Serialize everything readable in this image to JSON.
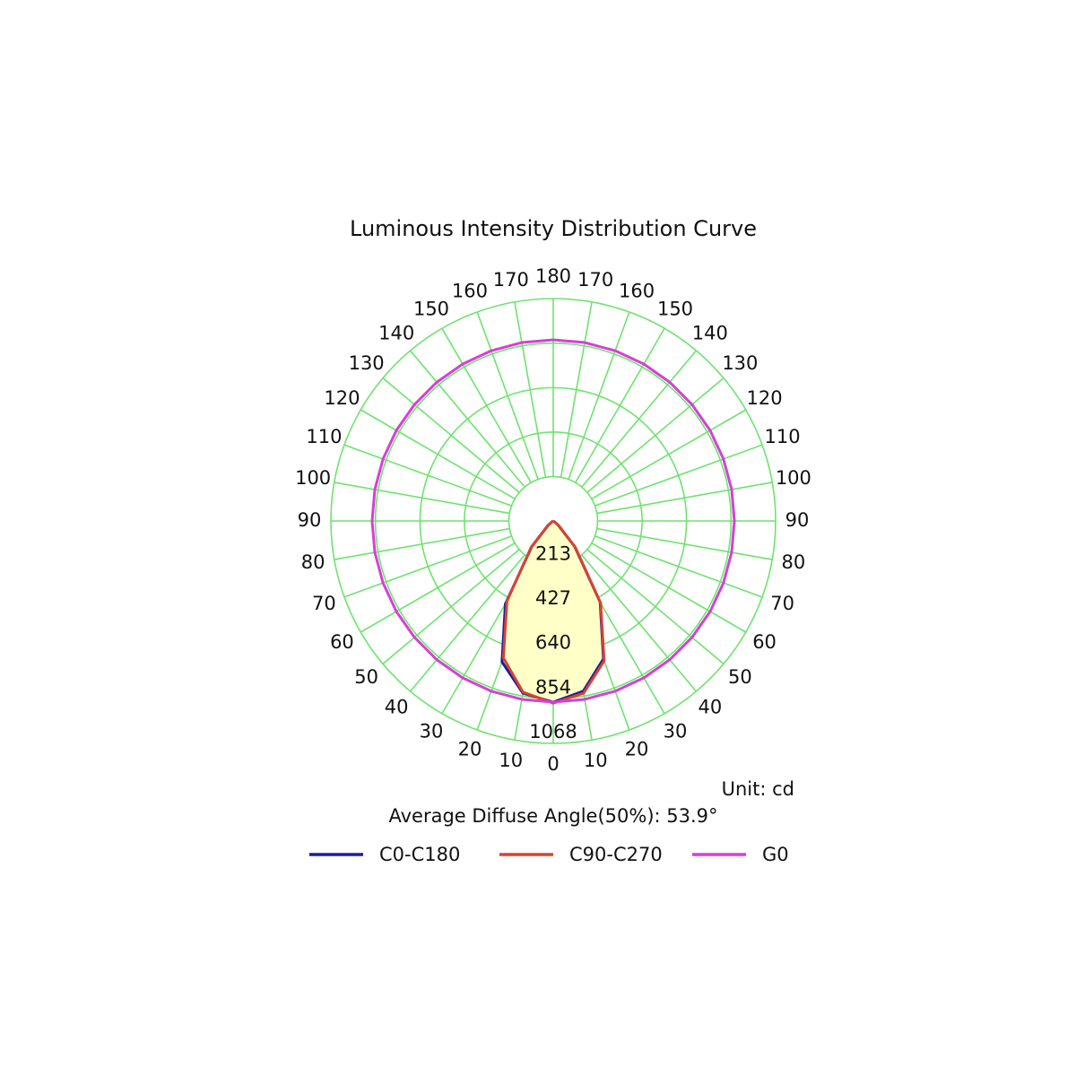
{
  "chart_data": {
    "type": "polar",
    "title": "Luminous Intensity Distribution Curve",
    "unit_label": "Unit: cd",
    "annotation": "Average Diffuse Angle(50%): 53.9°",
    "x": [
      -180,
      -170,
      -160,
      -150,
      -140,
      -130,
      -120,
      -110,
      -100,
      -90,
      -80,
      -70,
      -60,
      -50,
      -40,
      -30,
      -20,
      -10,
      0,
      10,
      20,
      30,
      40,
      50,
      60,
      70,
      80,
      90,
      100,
      110,
      120,
      130,
      140,
      150,
      160,
      170,
      180
    ],
    "rlim": [
      0,
      1068
    ],
    "rticks": [
      213,
      427,
      640,
      854,
      1068
    ],
    "thetaticks": [
      {
        "value": -170,
        "label": "170"
      },
      {
        "value": -160,
        "label": "160"
      },
      {
        "value": -150,
        "label": "150"
      },
      {
        "value": -140,
        "label": "140"
      },
      {
        "value": -130,
        "label": "130"
      },
      {
        "value": -120,
        "label": "120"
      },
      {
        "value": -110,
        "label": "110"
      },
      {
        "value": -100,
        "label": "100"
      },
      {
        "value": -90,
        "label": "90"
      },
      {
        "value": -80,
        "label": "80"
      },
      {
        "value": -70,
        "label": "70"
      },
      {
        "value": -60,
        "label": "60"
      },
      {
        "value": -50,
        "label": "50"
      },
      {
        "value": -40,
        "label": "40"
      },
      {
        "value": -30,
        "label": "30"
      },
      {
        "value": -20,
        "label": "20"
      },
      {
        "value": -10,
        "label": "10"
      },
      0,
      10,
      20,
      30,
      40,
      50,
      60,
      70,
      80,
      90,
      100,
      110,
      120,
      130,
      140,
      150,
      160,
      170,
      180
    ],
    "grid": true,
    "grid_color": "#6ee36e",
    "series": [
      {
        "name": "C0-C180",
        "color": "#1c1ca6",
        "fill": "#ffffc8",
        "values": [
          0,
          0,
          0,
          0,
          0,
          0,
          0,
          0,
          0,
          0,
          0,
          0,
          5,
          30,
          160,
          460,
          720,
          840,
          870,
          830,
          705,
          450,
          160,
          30,
          5,
          0,
          0,
          0,
          0,
          0,
          0,
          0,
          0,
          0,
          0,
          0,
          0
        ]
      },
      {
        "name": "C90-C270",
        "color": "#d8432f",
        "values": [
          0,
          0,
          0,
          0,
          0,
          0,
          0,
          0,
          0,
          0,
          0,
          0,
          5,
          35,
          165,
          445,
          700,
          835,
          875,
          840,
          715,
          455,
          165,
          35,
          5,
          0,
          0,
          0,
          0,
          0,
          0,
          0,
          0,
          0,
          0,
          0,
          0
        ]
      },
      {
        "name": "G0",
        "color": "#d63fd6",
        "values": [
          870,
          870,
          870,
          870,
          870,
          870,
          870,
          870,
          870,
          870,
          870,
          870,
          870,
          870,
          870,
          870,
          870,
          870,
          870,
          870,
          870,
          870,
          870,
          870,
          870,
          870,
          870,
          870,
          870,
          870,
          870,
          870,
          870,
          870,
          870,
          870,
          870
        ]
      }
    ]
  }
}
